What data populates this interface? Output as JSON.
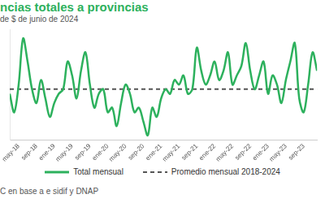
{
  "chart_data": {
    "type": "line",
    "title": "ncias totales a provincias",
    "subtitle": "de $ de junio de 2024",
    "source": "C en base a e sidif y DNAP",
    "categories": [
      null,
      null,
      "may-18",
      null,
      null,
      null,
      "sep-18",
      null,
      null,
      null,
      "ene-19",
      null,
      null,
      null,
      "may-19",
      null,
      null,
      null,
      "sep-19",
      null,
      null,
      null,
      "ene-20",
      null,
      null,
      null,
      "may-20",
      null,
      null,
      null,
      "sep-20",
      null,
      null,
      null,
      "ene-21",
      null,
      null,
      null,
      "may-21",
      null,
      null,
      null,
      "sep-21",
      null,
      null,
      null,
      "ene-22",
      null,
      null,
      null,
      "may-22",
      null,
      null,
      null,
      "sep-22",
      null,
      null,
      null,
      "ene-23",
      null,
      null,
      null,
      "may-23",
      null,
      null,
      null,
      "sep-23",
      null,
      null,
      null
    ],
    "series": [
      {
        "name": "Total mensual",
        "color": "#2db15d",
        "line_style": "solid",
        "values": [
          99,
          95,
          101,
          111,
          106,
          100,
          97,
          102,
          98,
          94,
          97,
          99,
          100,
          106,
          103,
          98,
          104,
          108,
          101,
          96,
          99,
          100,
          95,
          96,
          92,
          97,
          101,
          99,
          95,
          96,
          93,
          90,
          96,
          94,
          98,
          100,
          99,
          102,
          101,
          103,
          99,
          100,
          109,
          104,
          101,
          103,
          106,
          102,
          104,
          108,
          101,
          103,
          105,
          110,
          104,
          100,
          103,
          106,
          99,
          103,
          101,
          97,
          102,
          106,
          110,
          98,
          95,
          101,
          108,
          104
        ]
      },
      {
        "name": "Promedio mensual 2018-2024",
        "color": "#555555",
        "line_style": "dashed",
        "values": [
          100,
          100,
          100,
          100,
          100,
          100,
          100,
          100,
          100,
          100,
          100,
          100,
          100,
          100,
          100,
          100,
          100,
          100,
          100,
          100,
          100,
          100,
          100,
          100,
          100,
          100,
          100,
          100,
          100,
          100,
          100,
          100,
          100,
          100,
          100,
          100,
          100,
          100,
          100,
          100,
          100,
          100,
          100,
          100,
          100,
          100,
          100,
          100,
          100,
          100,
          100,
          100,
          100,
          100,
          100,
          100,
          100,
          100,
          100,
          100,
          100,
          100,
          100,
          100,
          100,
          100,
          100,
          100,
          100,
          100
        ]
      }
    ],
    "ylim": [
      89,
      113
    ],
    "grid": false,
    "legend": "bottom",
    "tick_labels": "x"
  }
}
